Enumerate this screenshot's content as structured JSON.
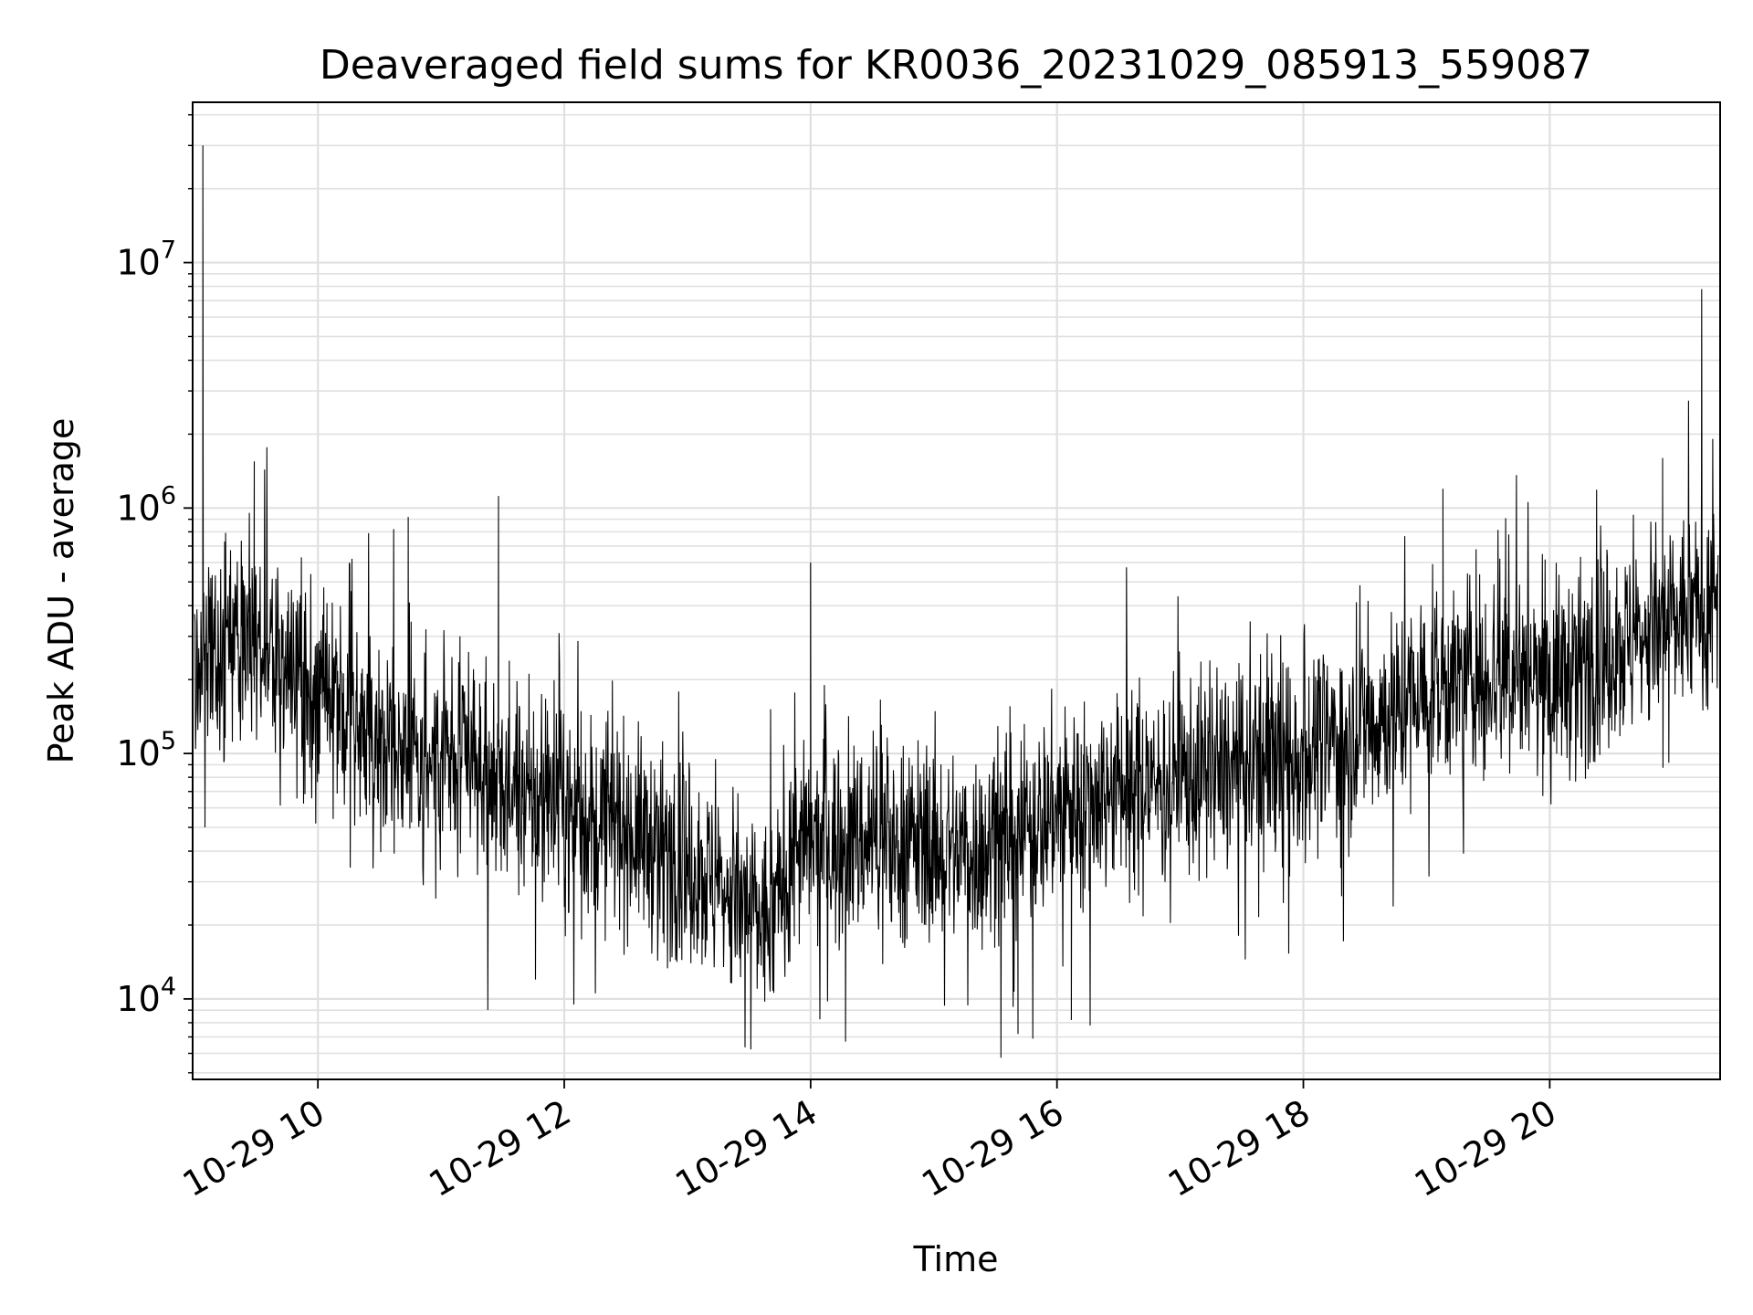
{
  "chart_data": {
    "type": "line",
    "title": "Deaveraged field sums for KR0036_20231029_085913_559087",
    "xlabel": "Time",
    "ylabel": "Peak ADU - average",
    "yscale": "log",
    "grid": true,
    "legend": "none",
    "line_color": "#000000",
    "grid_color": "#e0e0e0",
    "x_range": [
      "2023-10-29 08:59",
      "2023-10-29 21:23"
    ],
    "ylim": [
      4700,
      45000000
    ],
    "x_ticks": [
      {
        "time": "2023-10-29 10:00",
        "label": "10-29 10"
      },
      {
        "time": "2023-10-29 12:00",
        "label": "10-29 12"
      },
      {
        "time": "2023-10-29 14:00",
        "label": "10-29 14"
      },
      {
        "time": "2023-10-29 16:00",
        "label": "10-29 16"
      },
      {
        "time": "2023-10-29 18:00",
        "label": "10-29 18"
      },
      {
        "time": "2023-10-29 20:00",
        "label": "10-29 20"
      }
    ],
    "y_ticks": [
      {
        "value": 10000,
        "base": "10",
        "exp": "4"
      },
      {
        "value": 100000,
        "base": "10",
        "exp": "5"
      },
      {
        "value": 1000000,
        "base": "10",
        "exp": "6"
      },
      {
        "value": 10000000,
        "base": "10",
        "exp": "7"
      }
    ],
    "series": [
      {
        "trend": [
          {
            "time": "2023-10-29 09:00",
            "value": 250000
          },
          {
            "time": "2023-10-29 09:30",
            "value": 300000
          },
          {
            "time": "2023-10-29 10:00",
            "value": 150000
          },
          {
            "time": "2023-10-29 10:30",
            "value": 120000
          },
          {
            "time": "2023-10-29 11:00",
            "value": 95000
          },
          {
            "time": "2023-10-29 11:30",
            "value": 70000
          },
          {
            "time": "2023-10-29 12:00",
            "value": 58000
          },
          {
            "time": "2023-10-29 12:30",
            "value": 50000
          },
          {
            "time": "2023-10-29 13:00",
            "value": 35000
          },
          {
            "time": "2023-10-29 13:40",
            "value": 20000
          },
          {
            "time": "2023-10-29 13:50",
            "value": 40000
          },
          {
            "time": "2023-10-29 14:30",
            "value": 45000
          },
          {
            "time": "2023-10-29 15:00",
            "value": 42000
          },
          {
            "time": "2023-10-29 15:30",
            "value": 40000
          },
          {
            "time": "2023-10-29 16:00",
            "value": 60000
          },
          {
            "time": "2023-10-29 16:30",
            "value": 72000
          },
          {
            "time": "2023-10-29 17:00",
            "value": 80000
          },
          {
            "time": "2023-10-29 17:30",
            "value": 85000
          },
          {
            "time": "2023-10-29 18:00",
            "value": 100000
          },
          {
            "time": "2023-10-29 18:30",
            "value": 130000
          },
          {
            "time": "2023-10-29 19:00",
            "value": 180000
          },
          {
            "time": "2023-10-29 19:30",
            "value": 220000
          },
          {
            "time": "2023-10-29 20:00",
            "value": 200000
          },
          {
            "time": "2023-10-29 20:30",
            "value": 260000
          },
          {
            "time": "2023-10-29 21:00",
            "value": 340000
          },
          {
            "time": "2023-10-29 21:22",
            "value": 450000
          }
        ],
        "spikes": [
          {
            "time": "2023-10-29 09:04",
            "value": 30000000
          },
          {
            "time": "2023-10-29 09:05",
            "value": 57000
          },
          {
            "time": "2023-10-29 09:29",
            "value": 1550000
          },
          {
            "time": "2023-10-29 10:44",
            "value": 920000
          },
          {
            "time": "2023-10-29 11:28",
            "value": 1120000
          },
          {
            "time": "2023-10-29 11:46",
            "value": 12000
          },
          {
            "time": "2023-10-29 14:00",
            "value": 600000
          },
          {
            "time": "2023-10-29 14:17",
            "value": 6700
          },
          {
            "time": "2023-10-29 15:41",
            "value": 7200
          },
          {
            "time": "2023-10-29 16:07",
            "value": 8200
          },
          {
            "time": "2023-10-29 19:08",
            "value": 1200000
          },
          {
            "time": "2023-10-29 20:55",
            "value": 1600000
          },
          {
            "time": "2023-10-29 21:14",
            "value": 7800000
          }
        ]
      }
    ]
  }
}
